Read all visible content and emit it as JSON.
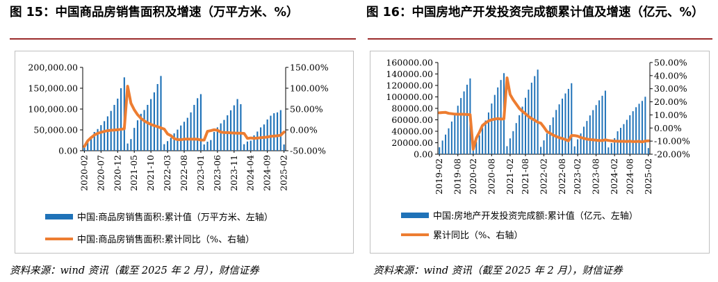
{
  "left": {
    "title": "图 15：中国商品房销售面积及增速（万平方米、%）",
    "source": "资料来源：wind 资讯（截至 2025 年 2 月），财信证券",
    "chart_data": {
      "type": "bar",
      "title": "",
      "xlabel": "",
      "ylabel": "",
      "ylim": [
        0,
        200000
      ],
      "y2lim": [
        -50,
        150
      ],
      "x_tick_labels": [
        "2020-02",
        "2020-07",
        "2020-12",
        "2021-05",
        "2021-10",
        "2022-03",
        "2022-08",
        "2023-01",
        "2023-06",
        "2023-11",
        "2024-04",
        "2024-09",
        "2025-02"
      ],
      "y_tick_labels": [
        "0.00",
        "50,000.00",
        "100,000.00",
        "150,000.00",
        "200,000.00"
      ],
      "y2_tick_labels": [
        "-50.00%",
        "0.00%",
        "50.00%",
        "100.00%",
        "150.00%"
      ],
      "legend": [
        "中国:商品房销售面积:累计值（万平方米、左轴）",
        "中国:商品房销售面积:累计同比（%、右轴）"
      ],
      "series": [
        {
          "name": "中国:商品房销售面积:累计值（万平方米、左轴）",
          "kind": "bar",
          "axis": "left",
          "color": "#1f72b8",
          "values": [
            8475,
            21978,
            33973,
            44952,
            52075,
            61400,
            71000,
            82500,
            95500,
            110000,
            125000,
            150000,
            176086,
            17300,
            28000,
            54800,
            73000,
            88600,
            97700,
            110000,
            124000,
            140000,
            160000,
            179400,
            15700,
            23000,
            31000,
            41700,
            50700,
            60500,
            69500,
            79000,
            92000,
            110000,
            126000,
            135800,
            15100,
            21700,
            25600,
            45200,
            56000,
            65600,
            73900,
            85000,
            97000,
            109000,
            124000,
            111700,
            15600,
            22100,
            24200,
            36900,
            46000,
            56000,
            63000,
            75000,
            84000,
            90000,
            92000,
            97400,
            15000
          ]
        },
        {
          "name": "中国:商品房销售面积:累计同比（%、右轴）",
          "kind": "line",
          "axis": "right",
          "color": "#ed7d31",
          "values": [
            -39.9,
            -26.3,
            -18.6,
            -12.3,
            -8.4,
            -5.8,
            -3.6,
            -1.8,
            -0.9,
            -0.4,
            0.3,
            1.3,
            2.6,
            104.9,
            63.8,
            48.1,
            36.3,
            27.7,
            21.5,
            17.1,
            13.1,
            10.2,
            7.7,
            4.8,
            1.9,
            -9.6,
            -13.8,
            -20.9,
            -23.2,
            -23.6,
            -22.2,
            -22.2,
            -22.3,
            -22.2,
            -22.3,
            -24.3,
            -24.3,
            -3.5,
            -1.8,
            0.4,
            -0.9,
            -5.3,
            -6.5,
            -6.5,
            -7.1,
            -7.5,
            -7.8,
            -8.0,
            -8.5,
            -20.5,
            -19.4,
            -20.2,
            -19.6,
            -18.6,
            -18.0,
            -17.1,
            -15.4,
            -14.8,
            -14.2,
            -12.9,
            -5.1
          ]
        }
      ]
    }
  },
  "right": {
    "title": "图 16：中国房地产开发投资完成额累计值及增速（亿元、%）",
    "source": "资料来源：wind 资讯（截至 2025 年 2 月），财信证券",
    "chart_data": {
      "type": "bar",
      "title": "",
      "xlabel": "",
      "ylabel": "",
      "ylim": [
        0,
        160000
      ],
      "y2lim": [
        -20,
        50
      ],
      "x_tick_labels": [
        "2019-02",
        "2019-08",
        "2020-02",
        "2020-08",
        "2021-02",
        "2021-08",
        "2022-02",
        "2022-08",
        "2023-02",
        "2023-08",
        "2024-02",
        "2024-08",
        "2025-02"
      ],
      "y_tick_labels": [
        "0.00",
        "20000.00",
        "40000.00",
        "60000.00",
        "80000.00",
        "100000.00",
        "120000.00",
        "140000.00",
        "160000.00"
      ],
      "y2_tick_labels": [
        "-20.00%",
        "-10.00%",
        "0.00%",
        "10.00%",
        "20.00%",
        "30.00%",
        "40.00%",
        "50.00%"
      ],
      "legend": [
        "中国:房地产开发投资完成额:累计值（亿元、左轴）",
        "累计同比（%、右轴）"
      ],
      "series": [
        {
          "name": "中国:房地产开发投资完成额:累计值（亿元、左轴）",
          "kind": "bar",
          "axis": "left",
          "color": "#1f72b8",
          "values": [
            12090,
            23803,
            34217,
            45167,
            56981,
            70118,
            84589,
            98008,
            109603,
            121265,
            132194,
            10115,
            21963,
            33103,
            45920,
            58731,
            72843,
            88454,
            103484,
            116556,
            129492,
            141443,
            13986,
            27576,
            40240,
            54318,
            68084,
            82989,
            98509,
            112700,
            124800,
            136300,
            147602,
            12761,
            24124,
            36244,
            50808,
            64255,
            77200,
            87000,
            97000,
            106000,
            114000,
            123863,
            13669,
            25974,
            36234,
            48000,
            58000,
            67700,
            76900,
            85700,
            94000,
            102000,
            110913,
            11842,
            19400,
            28000,
            40000,
            46000,
            52500,
            60000,
            68000,
            75000,
            82000,
            88000,
            93000,
            100280,
            10720
          ]
        },
        {
          "name": "累计同比（%、右轴）",
          "kind": "line",
          "axis": "right",
          "color": "#ed7d31",
          "values": [
            11.6,
            11.8,
            11.9,
            11.2,
            10.9,
            10.6,
            10.5,
            10.5,
            10.5,
            10.3,
            10.2,
            -16.3,
            -7.7,
            -3.3,
            1.9,
            3.8,
            5.4,
            6.3,
            6.8,
            7.2,
            6.8,
            7.0,
            38.3,
            25.6,
            21.6,
            18.3,
            15.0,
            12.7,
            10.9,
            8.8,
            7.2,
            6.0,
            4.4,
            3.7,
            0.7,
            -2.7,
            -4.0,
            -5.4,
            -6.4,
            -7.4,
            -8.0,
            -8.8,
            -9.8,
            -5.7,
            -5.8,
            -6.2,
            -7.2,
            -7.9,
            -8.5,
            -8.8,
            -9.1,
            -9.3,
            -9.6,
            -9.6,
            -9.0,
            -9.5,
            -9.8,
            -10.1,
            -10.1,
            -10.2,
            -10.2,
            -10.3,
            -10.1,
            -10.4,
            -10.3,
            -10.2,
            -10.6,
            -10.0,
            -9.8
          ]
        }
      ]
    }
  }
}
